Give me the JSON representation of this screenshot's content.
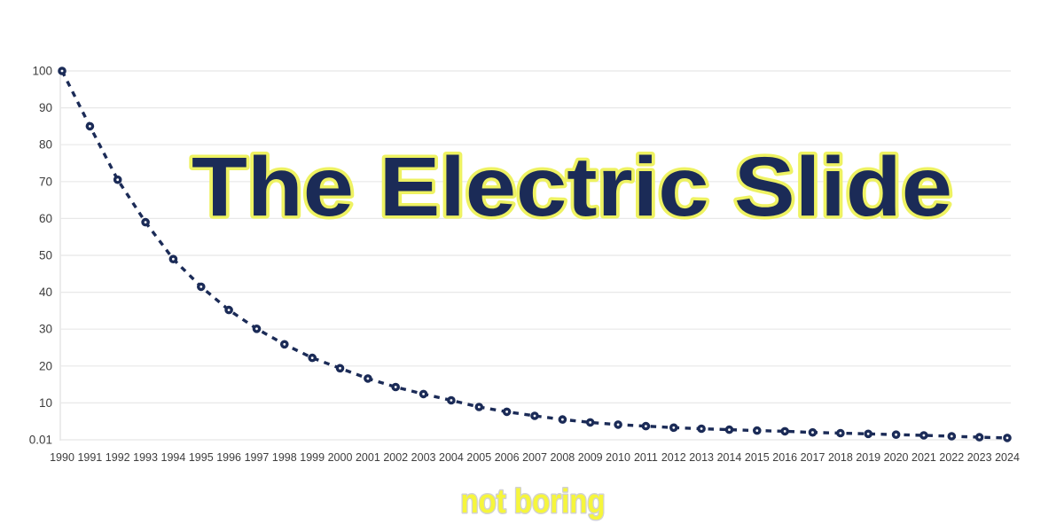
{
  "page": {
    "background": "#ffffff"
  },
  "title": {
    "text": "The Electric Slide",
    "fill_color": "#1b2b57",
    "outline_color": "#eef262"
  },
  "watermark": {
    "text": "not boring",
    "fill_color": "#f6f63c",
    "outline_color": "#d2d2d2"
  },
  "chart_data": {
    "type": "line",
    "title": "The Electric Slide",
    "xlabel": "",
    "ylabel": "",
    "x": [
      "1990",
      "1991",
      "1992",
      "1993",
      "1994",
      "1995",
      "1996",
      "1997",
      "1998",
      "1999",
      "2000",
      "2001",
      "2002",
      "2003",
      "2004",
      "2005",
      "2006",
      "2007",
      "2008",
      "2009",
      "2010",
      "2011",
      "2012",
      "2013",
      "2014",
      "2015",
      "2016",
      "2017",
      "2018",
      "2019",
      "2020",
      "2021",
      "2022",
      "2023",
      "2024"
    ],
    "values": [
      100,
      85,
      70.5,
      59,
      49,
      41.5,
      35.2,
      30.1,
      25.9,
      22.2,
      19.4,
      16.6,
      14.3,
      12.4,
      10.7,
      8.9,
      7.6,
      6.5,
      5.5,
      4.7,
      4.1,
      3.7,
      3.3,
      3.0,
      2.75,
      2.5,
      2.3,
      2.0,
      1.8,
      1.6,
      1.4,
      1.2,
      0.95,
      0.7,
      0.5
    ],
    "y_tick_labels": [
      "100",
      "90",
      "80",
      "70",
      "60",
      "50",
      "40",
      "30",
      "20",
      "10",
      "0.01"
    ],
    "y_tick_values": [
      100,
      90,
      80,
      70,
      60,
      50,
      40,
      30,
      20,
      10,
      0.01
    ],
    "ylim": [
      0.01,
      100
    ],
    "grid": true,
    "legend": "none",
    "line_style": "dashed",
    "marker": "open-circle",
    "line_color": "#1b2b57",
    "marker_hole_color": "#ffffff",
    "grid_color": "#e8e8e8",
    "axis_color": "#dfdfdf",
    "tick_color": "#3d3d3d"
  }
}
